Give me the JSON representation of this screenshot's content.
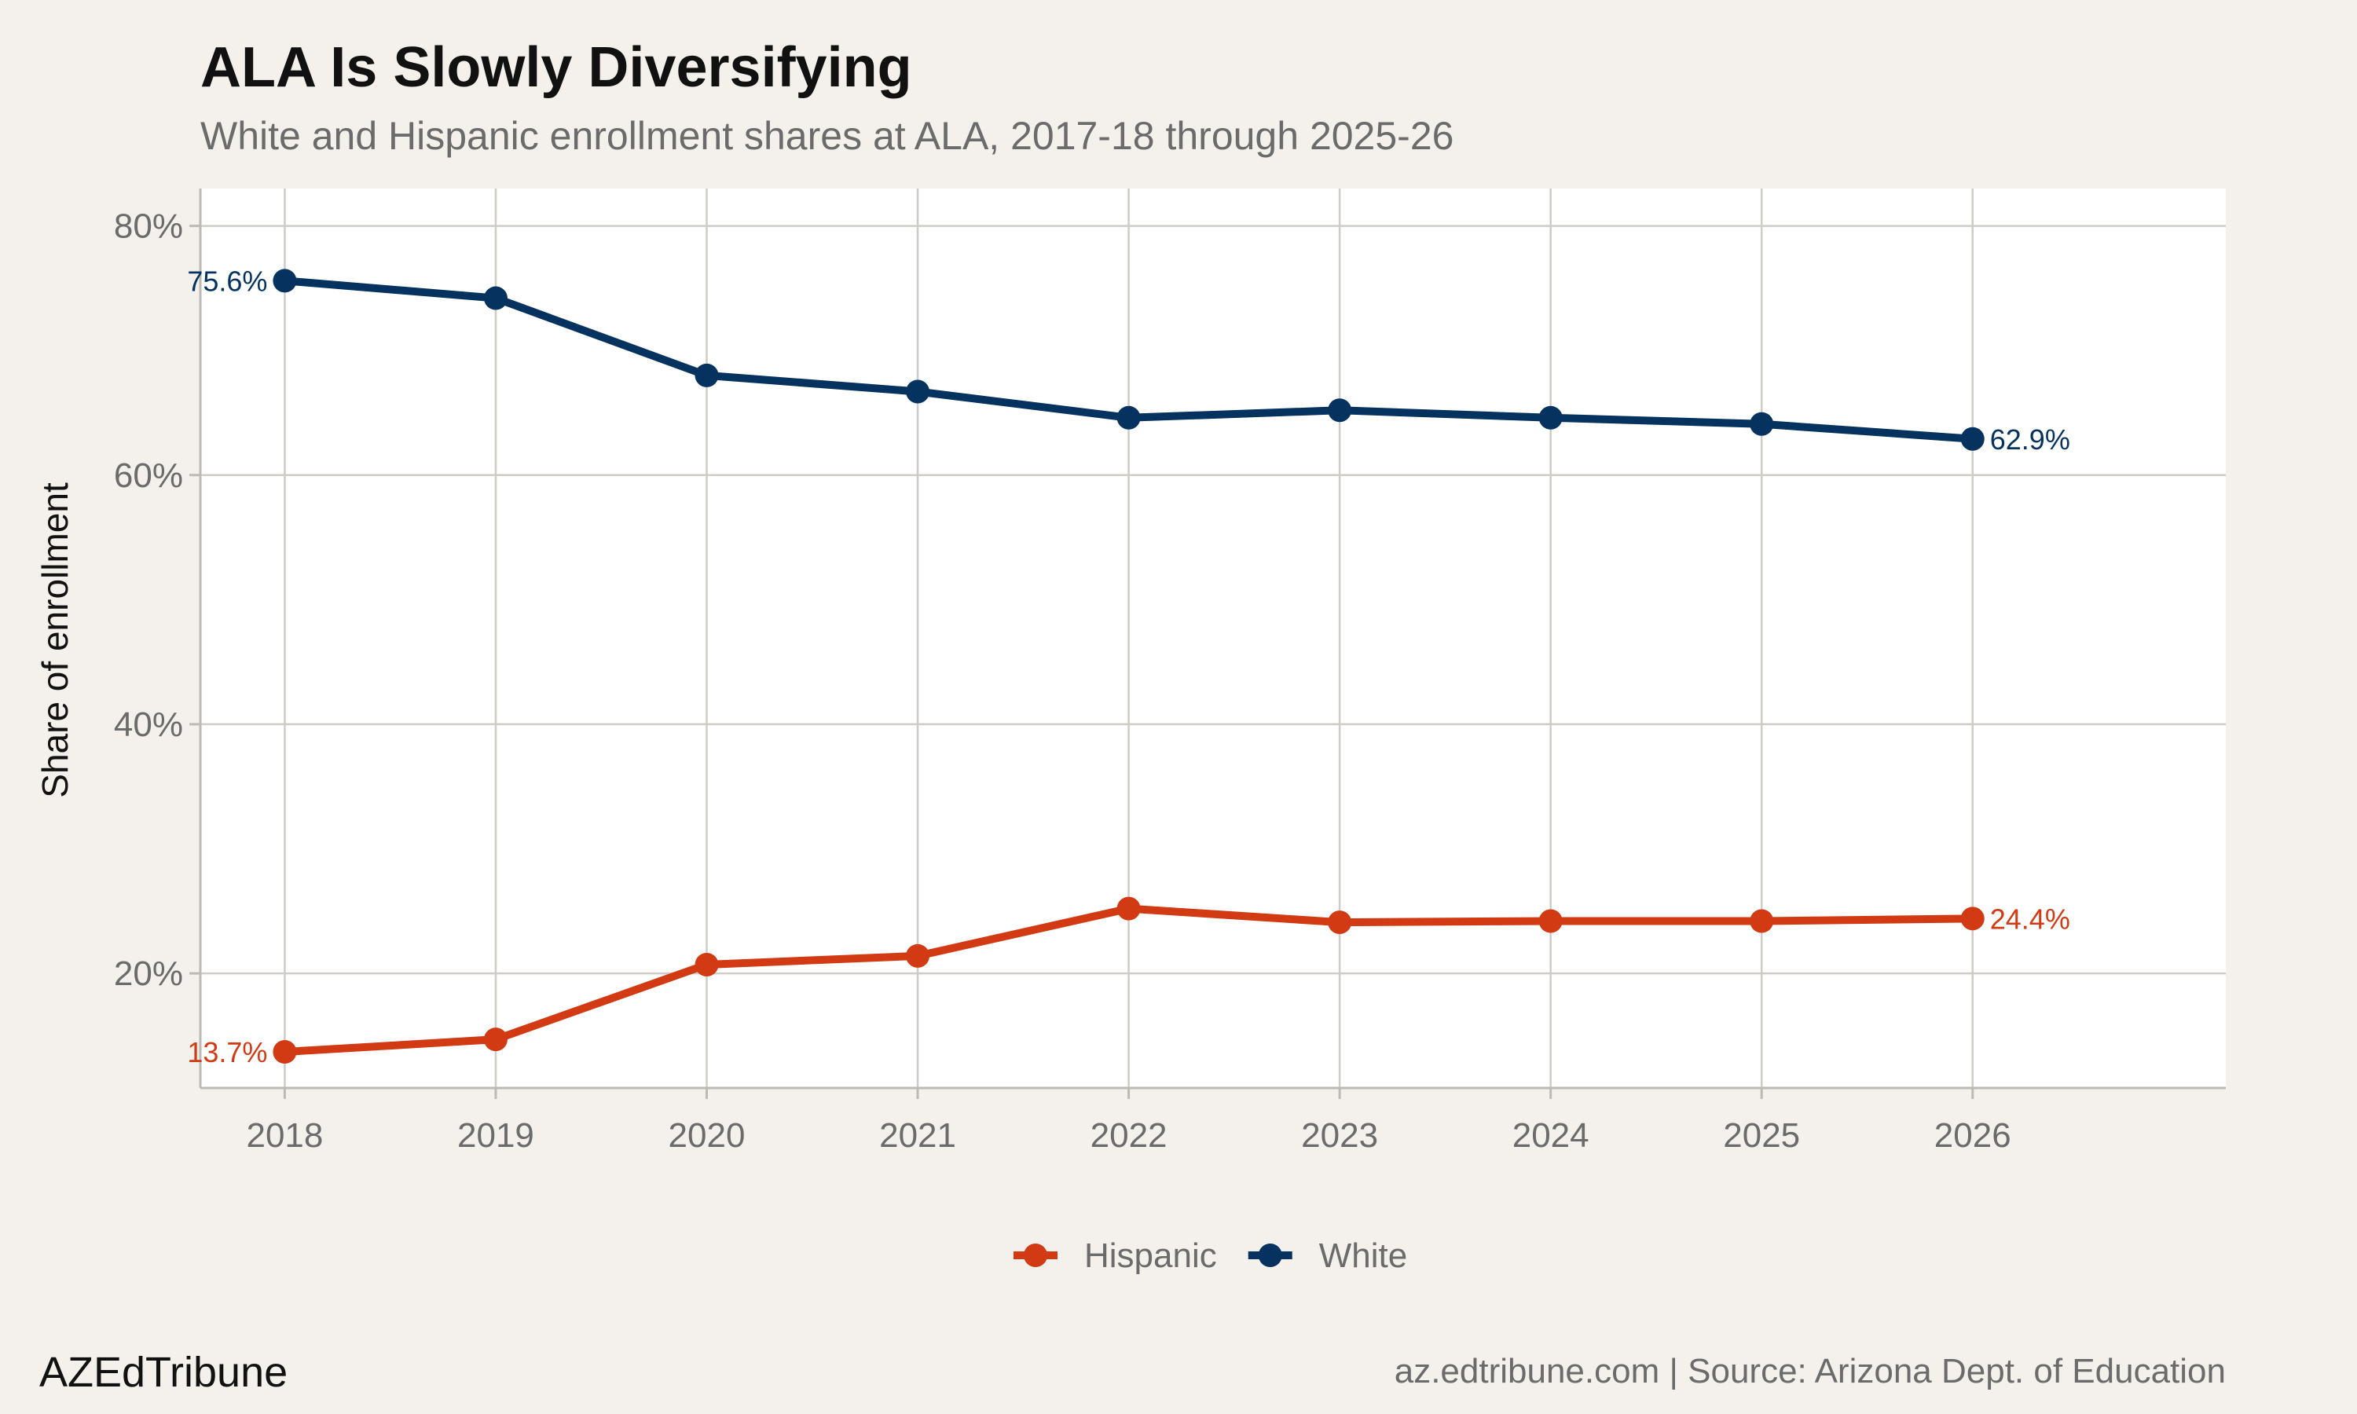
{
  "chart_data": {
    "type": "line",
    "title": "ALA Is Slowly Diversifying",
    "subtitle": "White and Hispanic enrollment shares at ALA, 2017-18 through 2025-26",
    "xlabel": "",
    "ylabel": "Share of enrollment",
    "x": [
      2018,
      2019,
      2020,
      2021,
      2022,
      2023,
      2024,
      2025,
      2026
    ],
    "x_tick_labels": [
      "2018",
      "2019",
      "2020",
      "2021",
      "2022",
      "2023",
      "2024",
      "2025",
      "2026"
    ],
    "xlim": [
      2017.6,
      2027.2
    ],
    "ylim": [
      10.8,
      83
    ],
    "y_ticks": [
      20,
      40,
      60,
      80
    ],
    "y_tick_labels": [
      "20%",
      "40%",
      "60%",
      "80%"
    ],
    "grid": true,
    "legend_position": "bottom",
    "series": [
      {
        "name": "Hispanic",
        "color": "#d13a12",
        "values": [
          13.7,
          14.7,
          20.7,
          21.4,
          25.2,
          24.1,
          24.2,
          24.2,
          24.4
        ],
        "start_label": "13.7%",
        "end_label": "24.4%"
      },
      {
        "name": "White",
        "color": "#05325f",
        "values": [
          75.6,
          74.2,
          68.0,
          66.7,
          64.6,
          65.2,
          64.6,
          64.1,
          62.9
        ],
        "start_label": "75.6%",
        "end_label": "62.9%"
      }
    ]
  },
  "caption": {
    "left": "AZEdTribune",
    "right": "az.edtribune.com | Source: Arizona Dept. of Education"
  }
}
